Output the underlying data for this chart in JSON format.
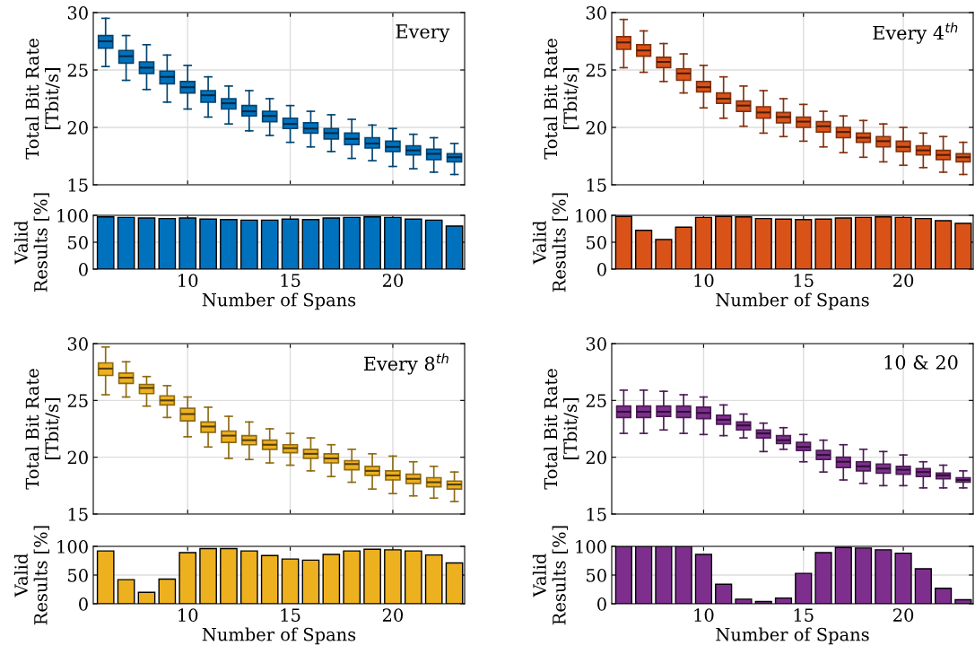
{
  "chart_data": [
    {
      "type": "box",
      "ylabel": "Total Bit Rate\n[Tbit/s]",
      "annotations": [
        "Every"
      ],
      "color": "#0072bd",
      "x": [
        6,
        7,
        8,
        9,
        10,
        11,
        12,
        13,
        14,
        15,
        16,
        17,
        18,
        19,
        20,
        21,
        22,
        23
      ],
      "xlim": [
        5.4,
        23.5
      ],
      "xticks": [
        10,
        15,
        20
      ],
      "ylim": [
        15,
        30
      ],
      "yticks": [
        15,
        20,
        25,
        30
      ],
      "grid": true,
      "tick_labels": "y",
      "boxes": [
        {
          "low": 25.3,
          "q1": 26.9,
          "median": 27.5,
          "q3": 28.0,
          "high": 29.5
        },
        {
          "low": 24.1,
          "q1": 25.6,
          "median": 26.2,
          "q3": 26.7,
          "high": 28.0
        },
        {
          "low": 23.3,
          "q1": 24.7,
          "median": 25.2,
          "q3": 25.7,
          "high": 27.2
        },
        {
          "low": 22.2,
          "q1": 23.8,
          "median": 24.4,
          "q3": 24.9,
          "high": 26.3
        },
        {
          "low": 21.6,
          "q1": 23.0,
          "median": 23.5,
          "q3": 24.0,
          "high": 25.4
        },
        {
          "low": 20.9,
          "q1": 22.2,
          "median": 22.8,
          "q3": 23.2,
          "high": 24.4
        },
        {
          "low": 20.3,
          "q1": 21.6,
          "median": 22.1,
          "q3": 22.5,
          "high": 23.6
        },
        {
          "low": 19.7,
          "q1": 21.0,
          "median": 21.4,
          "q3": 21.9,
          "high": 23.2
        },
        {
          "low": 19.3,
          "q1": 20.5,
          "median": 21.0,
          "q3": 21.4,
          "high": 22.5
        },
        {
          "low": 18.7,
          "q1": 19.9,
          "median": 20.3,
          "q3": 20.8,
          "high": 21.9
        },
        {
          "low": 18.3,
          "q1": 19.5,
          "median": 19.9,
          "q3": 20.4,
          "high": 21.4
        },
        {
          "low": 17.9,
          "q1": 19.0,
          "median": 19.5,
          "q3": 19.9,
          "high": 21.1
        },
        {
          "low": 17.3,
          "q1": 18.5,
          "median": 19.0,
          "q3": 19.5,
          "high": 20.7
        },
        {
          "low": 17.1,
          "q1": 18.2,
          "median": 18.6,
          "q3": 19.1,
          "high": 20.2
        },
        {
          "low": 16.6,
          "q1": 17.9,
          "median": 18.3,
          "q3": 18.8,
          "high": 19.9
        },
        {
          "low": 16.4,
          "q1": 17.6,
          "median": 18.0,
          "q3": 18.4,
          "high": 19.4
        },
        {
          "low": 16.1,
          "q1": 17.2,
          "median": 17.7,
          "q3": 18.1,
          "high": 19.1
        },
        {
          "low": 15.9,
          "q1": 17.0,
          "median": 17.4,
          "q3": 17.7,
          "high": 18.6
        }
      ]
    },
    {
      "type": "bar",
      "xlabel": "Number of Spans",
      "ylabel": "Valid\nResults [%]",
      "color": "#0072bd",
      "x": [
        6,
        7,
        8,
        9,
        10,
        11,
        12,
        13,
        14,
        15,
        16,
        17,
        18,
        19,
        20,
        21,
        22,
        23
      ],
      "values": [
        97,
        96,
        95,
        94,
        95,
        93,
        92,
        91,
        91,
        93,
        92,
        95,
        96,
        97,
        96,
        93,
        91,
        80
      ],
      "xlim": [
        5.4,
        23.5
      ],
      "xticks": [
        10,
        15,
        20
      ],
      "ylim": [
        0,
        100
      ],
      "yticks": [
        0,
        50,
        100
      ],
      "grid": true
    },
    {
      "type": "box",
      "ylabel": "Total Bit Rate\n[Tbit/s]",
      "annotations": [
        "Every 4$^{th}$"
      ],
      "color": "#d95319",
      "x": [
        6,
        7,
        8,
        9,
        10,
        11,
        12,
        13,
        14,
        15,
        16,
        17,
        18,
        19,
        20,
        21,
        22,
        23
      ],
      "xlim": [
        5.4,
        23.5
      ],
      "xticks": [
        10,
        15,
        20
      ],
      "ylim": [
        15,
        30
      ],
      "yticks": [
        15,
        20,
        25,
        30
      ],
      "grid": true,
      "tick_labels": "y",
      "boxes": [
        {
          "low": 25.2,
          "q1": 26.8,
          "median": 27.4,
          "q3": 27.9,
          "high": 29.4
        },
        {
          "low": 24.8,
          "q1": 26.2,
          "median": 26.7,
          "q3": 27.2,
          "high": 28.4
        },
        {
          "low": 24.0,
          "q1": 25.2,
          "median": 25.7,
          "q3": 26.1,
          "high": 27.3
        },
        {
          "low": 23.0,
          "q1": 24.1,
          "median": 24.7,
          "q3": 25.1,
          "high": 26.4
        },
        {
          "low": 21.7,
          "q1": 23.1,
          "median": 23.5,
          "q3": 24.0,
          "high": 25.4
        },
        {
          "low": 20.8,
          "q1": 22.1,
          "median": 22.5,
          "q3": 23.0,
          "high": 24.4
        },
        {
          "low": 20.1,
          "q1": 21.4,
          "median": 21.9,
          "q3": 22.3,
          "high": 23.6
        },
        {
          "low": 19.5,
          "q1": 20.8,
          "median": 21.3,
          "q3": 21.8,
          "high": 23.2
        },
        {
          "low": 19.2,
          "q1": 20.4,
          "median": 20.9,
          "q3": 21.3,
          "high": 22.5
        },
        {
          "low": 18.8,
          "q1": 20.0,
          "median": 20.5,
          "q3": 20.9,
          "high": 22.0
        },
        {
          "low": 18.3,
          "q1": 19.6,
          "median": 20.1,
          "q3": 20.5,
          "high": 21.4
        },
        {
          "low": 17.8,
          "q1": 19.1,
          "median": 19.6,
          "q3": 20.0,
          "high": 21.0
        },
        {
          "low": 17.4,
          "q1": 18.7,
          "median": 19.1,
          "q3": 19.5,
          "high": 20.6
        },
        {
          "low": 17.0,
          "q1": 18.3,
          "median": 18.8,
          "q3": 19.2,
          "high": 20.3
        },
        {
          "low": 16.7,
          "q1": 17.9,
          "median": 18.3,
          "q3": 18.8,
          "high": 20.0
        },
        {
          "low": 16.5,
          "q1": 17.6,
          "median": 18.0,
          "q3": 18.4,
          "high": 19.5
        },
        {
          "low": 16.1,
          "q1": 17.2,
          "median": 17.6,
          "q3": 18.0,
          "high": 19.2
        },
        {
          "low": 15.9,
          "q1": 17.0,
          "median": 17.4,
          "q3": 17.7,
          "high": 18.7
        }
      ]
    },
    {
      "type": "bar",
      "xlabel": "Number of Spans",
      "ylabel": "Valid\nResults [%]",
      "color": "#d95319",
      "x": [
        6,
        7,
        8,
        9,
        10,
        11,
        12,
        13,
        14,
        15,
        16,
        17,
        18,
        19,
        20,
        21,
        22,
        23
      ],
      "values": [
        98,
        72,
        55,
        78,
        96,
        98,
        97,
        94,
        93,
        92,
        93,
        95,
        96,
        97,
        96,
        94,
        90,
        85
      ],
      "xlim": [
        5.4,
        23.5
      ],
      "xticks": [
        10,
        15,
        20
      ],
      "ylim": [
        0,
        100
      ],
      "yticks": [
        0,
        50,
        100
      ],
      "grid": true
    },
    {
      "type": "box",
      "ylabel": "Total Bit Rate\n[Tbit/s]",
      "annotations": [
        "Every 8$^{th}$"
      ],
      "color": "#edb120",
      "x": [
        6,
        7,
        8,
        9,
        10,
        11,
        12,
        13,
        14,
        15,
        16,
        17,
        18,
        19,
        20,
        21,
        22,
        23
      ],
      "xlim": [
        5.4,
        23.5
      ],
      "xticks": [
        10,
        15,
        20
      ],
      "ylim": [
        15,
        30
      ],
      "yticks": [
        15,
        20,
        25,
        30
      ],
      "grid": true,
      "tick_labels": "y",
      "boxes": [
        {
          "low": 25.5,
          "q1": 27.2,
          "median": 27.8,
          "q3": 28.3,
          "high": 29.7
        },
        {
          "low": 25.3,
          "q1": 26.5,
          "median": 27.0,
          "q3": 27.4,
          "high": 28.4
        },
        {
          "low": 24.5,
          "q1": 25.6,
          "median": 26.1,
          "q3": 26.4,
          "high": 27.1
        },
        {
          "low": 23.5,
          "q1": 24.6,
          "median": 25.0,
          "q3": 25.4,
          "high": 26.3
        },
        {
          "low": 21.8,
          "q1": 23.2,
          "median": 23.8,
          "q3": 24.3,
          "high": 25.3
        },
        {
          "low": 20.9,
          "q1": 22.2,
          "median": 22.7,
          "q3": 23.1,
          "high": 24.4
        },
        {
          "low": 19.9,
          "q1": 21.3,
          "median": 21.9,
          "q3": 22.3,
          "high": 23.6
        },
        {
          "low": 19.8,
          "q1": 21.1,
          "median": 21.5,
          "q3": 21.9,
          "high": 23.1
        },
        {
          "low": 19.5,
          "q1": 20.7,
          "median": 21.1,
          "q3": 21.5,
          "high": 22.5
        },
        {
          "low": 19.3,
          "q1": 20.4,
          "median": 20.8,
          "q3": 21.1,
          "high": 22.1
        },
        {
          "low": 18.8,
          "q1": 19.9,
          "median": 20.3,
          "q3": 20.7,
          "high": 21.7
        },
        {
          "low": 18.3,
          "q1": 19.5,
          "median": 19.9,
          "q3": 20.3,
          "high": 21.1
        },
        {
          "low": 17.8,
          "q1": 18.9,
          "median": 19.4,
          "q3": 19.7,
          "high": 20.7
        },
        {
          "low": 17.2,
          "q1": 18.4,
          "median": 18.8,
          "q3": 19.2,
          "high": 20.3
        },
        {
          "low": 16.8,
          "q1": 18.0,
          "median": 18.4,
          "q3": 18.8,
          "high": 20.1
        },
        {
          "low": 16.6,
          "q1": 17.7,
          "median": 18.1,
          "q3": 18.5,
          "high": 19.6
        },
        {
          "low": 16.4,
          "q1": 17.4,
          "median": 17.8,
          "q3": 18.2,
          "high": 19.2
        },
        {
          "low": 16.1,
          "q1": 17.2,
          "median": 17.6,
          "q3": 17.9,
          "high": 18.7
        }
      ]
    },
    {
      "type": "bar",
      "xlabel": "Number of Spans",
      "ylabel": "Valid\nResults [%]",
      "color": "#edb120",
      "x": [
        6,
        7,
        8,
        9,
        10,
        11,
        12,
        13,
        14,
        15,
        16,
        17,
        18,
        19,
        20,
        21,
        22,
        23
      ],
      "values": [
        92,
        42,
        20,
        43,
        89,
        96,
        96,
        92,
        84,
        78,
        76,
        86,
        92,
        95,
        94,
        92,
        85,
        71
      ],
      "xlim": [
        5.4,
        23.5
      ],
      "xticks": [
        10,
        15,
        20
      ],
      "ylim": [
        0,
        100
      ],
      "yticks": [
        0,
        50,
        100
      ],
      "grid": true
    },
    {
      "type": "box",
      "ylabel": "Total Bit Rate\n[Tbit/s]",
      "annotations": [
        "10 & 20"
      ],
      "color": "#7e2f8e",
      "x": [
        6,
        7,
        8,
        9,
        10,
        11,
        12,
        13,
        14,
        15,
        16,
        17,
        18,
        19,
        20,
        21,
        22,
        23
      ],
      "xlim": [
        5.4,
        23.5
      ],
      "xticks": [
        10,
        15,
        20
      ],
      "ylim": [
        15,
        30
      ],
      "yticks": [
        15,
        20,
        25,
        30
      ],
      "grid": true,
      "tick_labels": "y",
      "boxes": [
        {
          "low": 22.1,
          "q1": 23.5,
          "median": 24.0,
          "q3": 24.5,
          "high": 25.9
        },
        {
          "low": 22.1,
          "q1": 23.5,
          "median": 24.0,
          "q3": 24.5,
          "high": 25.9
        },
        {
          "low": 22.4,
          "q1": 23.6,
          "median": 24.0,
          "q3": 24.5,
          "high": 25.8
        },
        {
          "low": 22.1,
          "q1": 23.5,
          "median": 24.0,
          "q3": 24.5,
          "high": 25.5
        },
        {
          "low": 22.0,
          "q1": 23.4,
          "median": 23.9,
          "q3": 24.4,
          "high": 25.3
        },
        {
          "low": 21.9,
          "q1": 22.9,
          "median": 23.3,
          "q3": 23.7,
          "high": 24.6
        },
        {
          "low": 21.7,
          "q1": 22.4,
          "median": 22.8,
          "q3": 23.1,
          "high": 23.8
        },
        {
          "low": 20.5,
          "q1": 21.7,
          "median": 22.1,
          "q3": 22.4,
          "high": 23.0
        },
        {
          "low": 20.7,
          "q1": 21.2,
          "median": 21.5,
          "q3": 21.9,
          "high": 22.6
        },
        {
          "low": 19.6,
          "q1": 20.6,
          "median": 20.9,
          "q3": 21.3,
          "high": 22.0
        },
        {
          "low": 18.7,
          "q1": 19.8,
          "median": 20.2,
          "q3": 20.6,
          "high": 21.5
        },
        {
          "low": 18.0,
          "q1": 19.1,
          "median": 19.6,
          "q3": 20.0,
          "high": 21.1
        },
        {
          "low": 17.7,
          "q1": 18.8,
          "median": 19.2,
          "q3": 19.6,
          "high": 20.7
        },
        {
          "low": 17.5,
          "q1": 18.6,
          "median": 19.0,
          "q3": 19.4,
          "high": 20.5
        },
        {
          "low": 17.5,
          "q1": 18.5,
          "median": 18.9,
          "q3": 19.2,
          "high": 20.2
        },
        {
          "low": 17.3,
          "q1": 18.3,
          "median": 18.7,
          "q3": 19.0,
          "high": 19.6
        },
        {
          "low": 17.3,
          "q1": 18.1,
          "median": 18.4,
          "q3": 18.6,
          "high": 19.3
        },
        {
          "low": 17.3,
          "q1": 17.8,
          "median": 18.0,
          "q3": 18.2,
          "high": 18.8
        }
      ]
    },
    {
      "type": "bar",
      "xlabel": "Number of Spans",
      "ylabel": "Valid\nResults [%]",
      "color": "#7e2f8e",
      "x": [
        6,
        7,
        8,
        9,
        10,
        11,
        12,
        13,
        14,
        15,
        16,
        17,
        18,
        19,
        20,
        21,
        22,
        23
      ],
      "values": [
        100,
        100,
        100,
        100,
        86,
        34,
        8,
        4,
        10,
        53,
        89,
        98,
        97,
        94,
        88,
        61,
        27,
        7
      ],
      "xlim": [
        5.4,
        23.5
      ],
      "xticks": [
        10,
        15,
        20
      ],
      "ylim": [
        0,
        100
      ],
      "yticks": [
        0,
        50,
        100
      ],
      "grid": true
    }
  ]
}
